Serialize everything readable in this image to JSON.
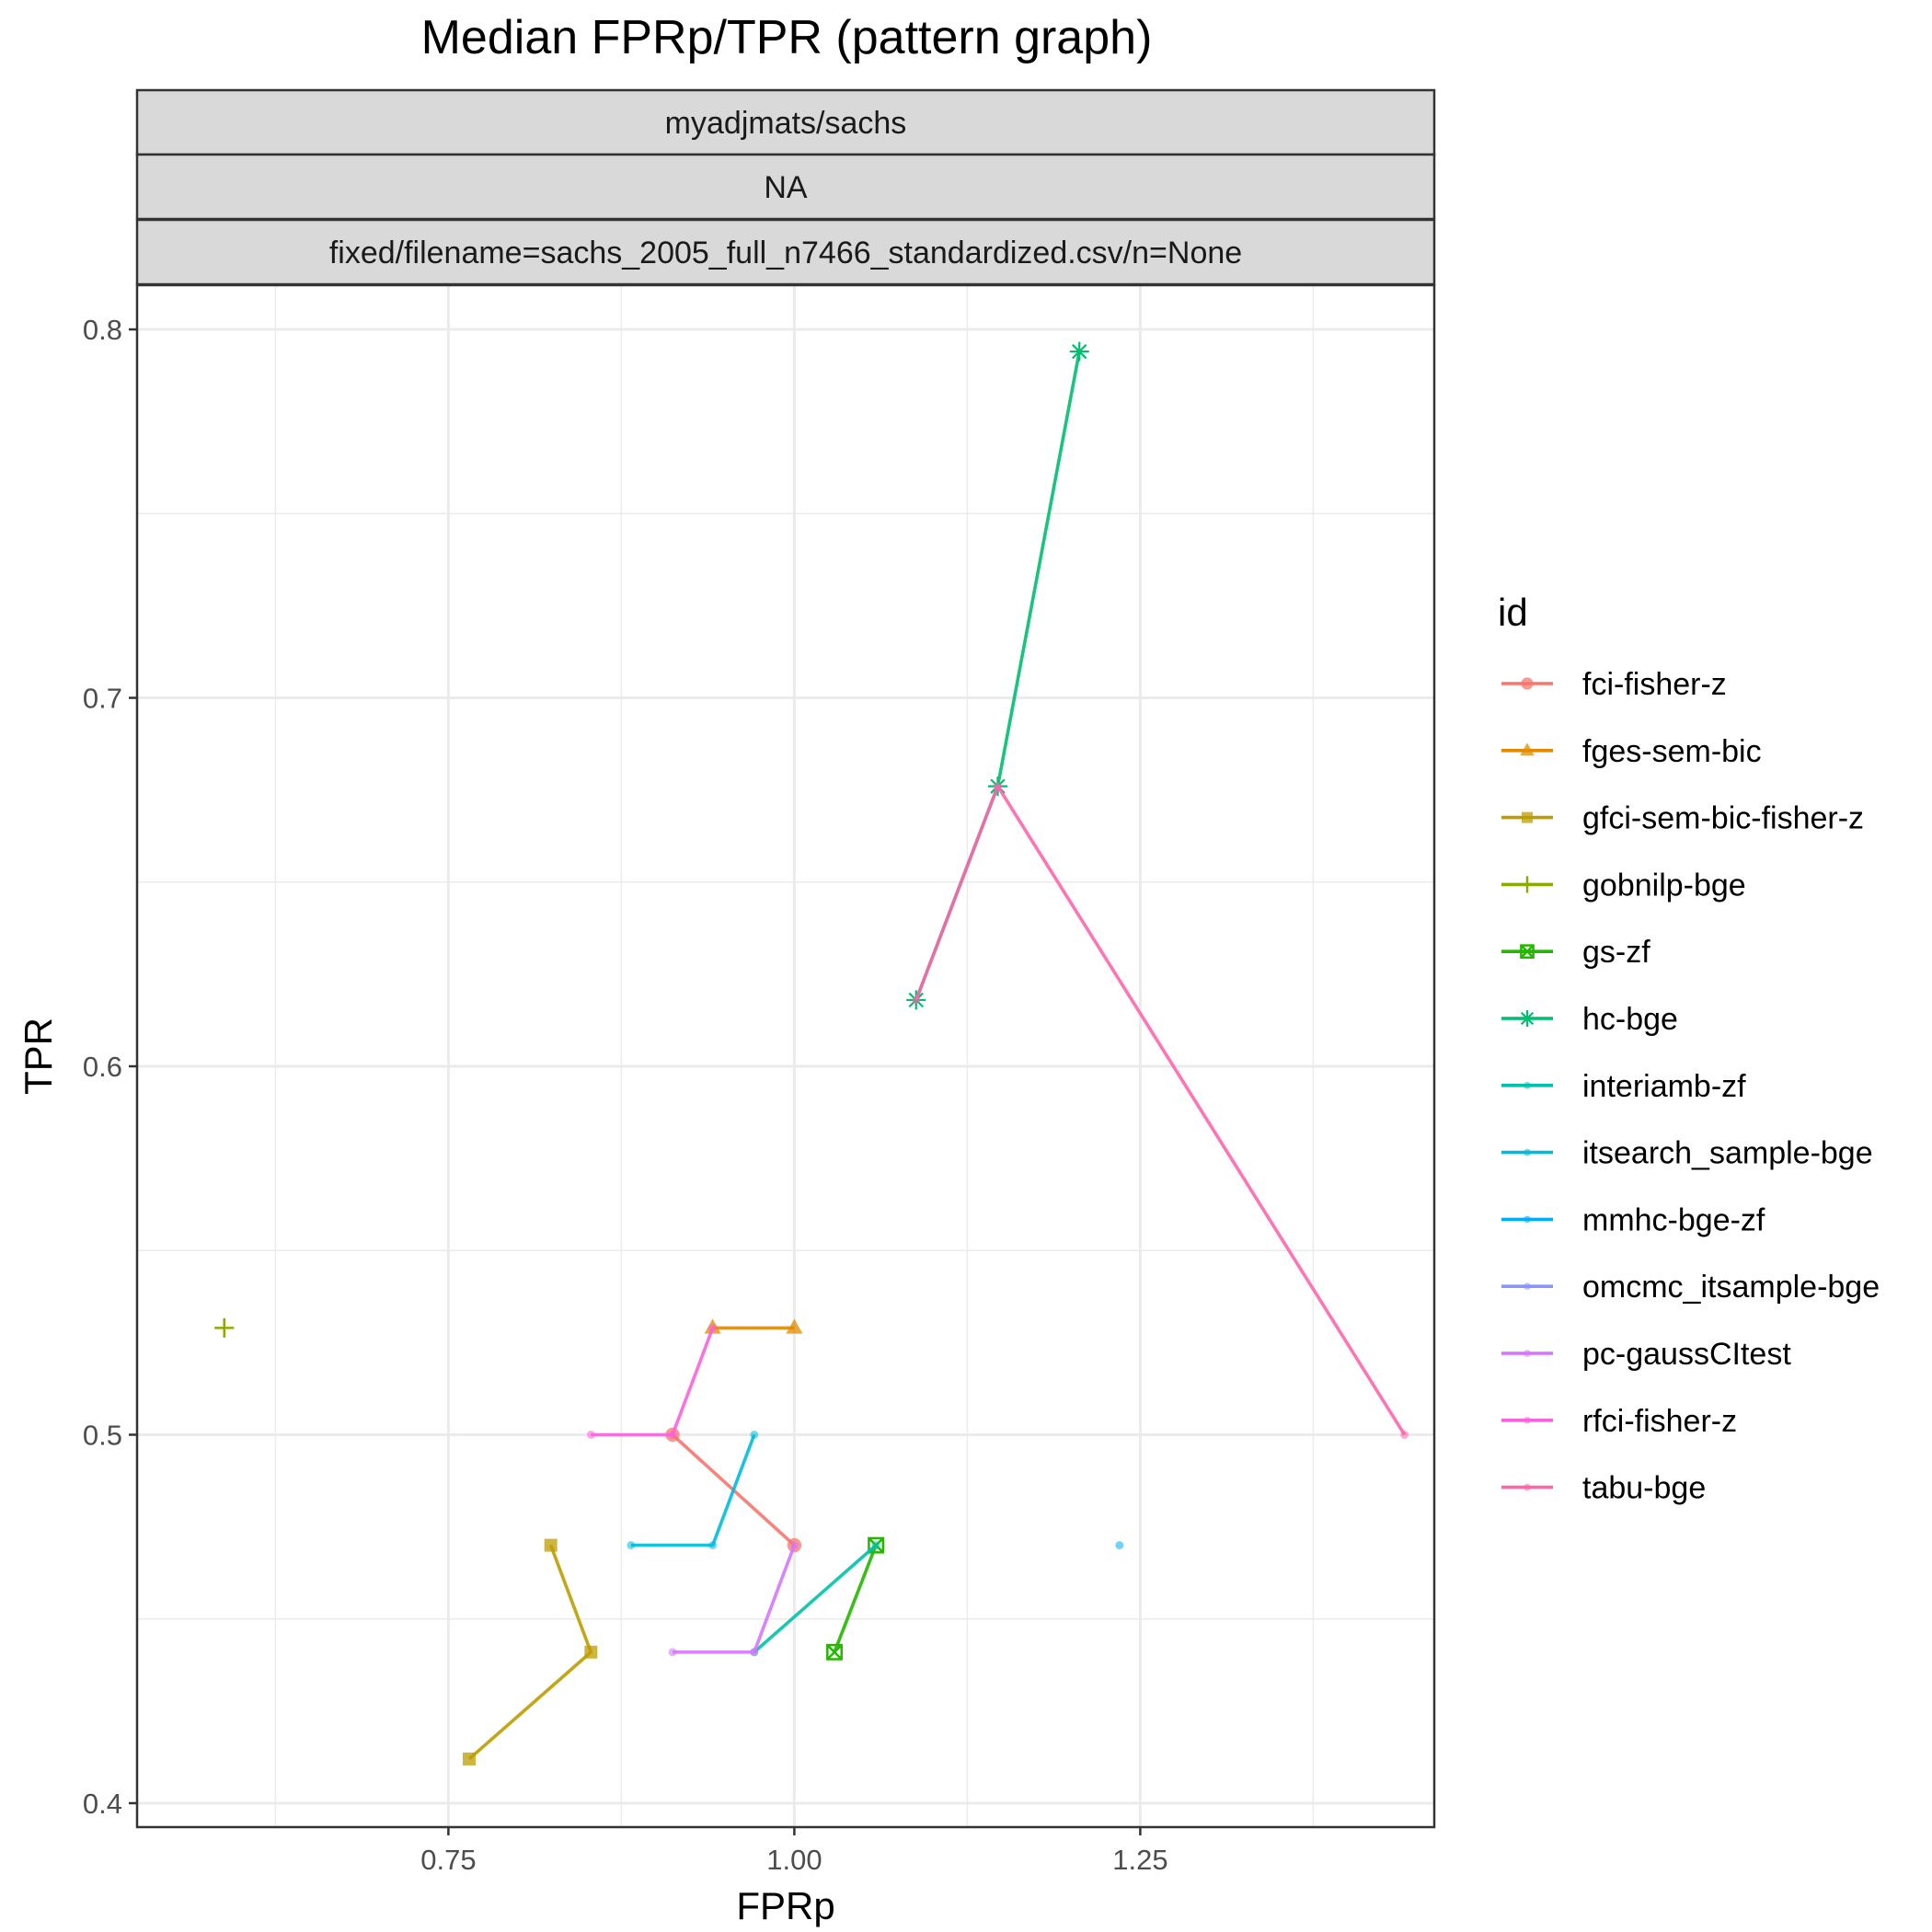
{
  "chart_data": {
    "type": "line",
    "title": "Median FPRp/TPR (pattern graph)",
    "strips": [
      "myadjmats/sachs",
      "NA",
      "fixed/filename=sachs_2005_full_n7466_standardized.csv/n=None"
    ],
    "xlabel": "FPRp",
    "ylabel": "TPR",
    "xlim": [
      0.525,
      1.4625
    ],
    "ylim": [
      0.3935,
      0.812
    ],
    "x_ticks": [
      {
        "value": 0.75,
        "label": "0.75"
      },
      {
        "value": 1.0,
        "label": "1.00"
      },
      {
        "value": 1.25,
        "label": "1.25"
      }
    ],
    "x_minor": [
      0.625,
      0.875,
      1.125,
      1.375
    ],
    "y_ticks": [
      {
        "value": 0.4,
        "label": "0.4"
      },
      {
        "value": 0.5,
        "label": "0.5"
      },
      {
        "value": 0.6,
        "label": "0.6"
      },
      {
        "value": 0.7,
        "label": "0.7"
      },
      {
        "value": 0.8,
        "label": "0.8"
      }
    ],
    "y_minor": [
      0.45,
      0.55,
      0.65,
      0.75
    ],
    "grid": true,
    "legend_title": "id",
    "legend_position": "right",
    "series": [
      {
        "name": "fci-fisher-z",
        "color": "#F8766D",
        "shape": "circle",
        "points": [
          [
            0.912,
            0.5
          ],
          [
            1.0,
            0.47
          ]
        ]
      },
      {
        "name": "fges-sem-bic",
        "color": "#E18A00",
        "shape": "triangle",
        "points": [
          [
            0.941,
            0.529
          ],
          [
            1.0,
            0.529
          ]
        ]
      },
      {
        "name": "gfci-sem-bic-fisher-z",
        "color": "#BE9C00",
        "shape": "square",
        "points": [
          [
            0.765,
            0.412
          ],
          [
            0.853,
            0.441
          ],
          [
            0.824,
            0.47
          ]
        ]
      },
      {
        "name": "gobnilp-bge",
        "color": "#8CAB00",
        "shape": "plus",
        "points": [
          [
            0.588,
            0.529
          ]
        ]
      },
      {
        "name": "gs-zf",
        "color": "#24B700",
        "shape": "square-cross",
        "points": [
          [
            1.029,
            0.441
          ],
          [
            1.059,
            0.47
          ]
        ]
      },
      {
        "name": "hc-bge",
        "color": "#00BE70",
        "shape": "star",
        "points": [
          [
            1.088,
            0.618
          ],
          [
            1.147,
            0.676
          ],
          [
            1.206,
            0.794
          ]
        ]
      },
      {
        "name": "interiamb-zf",
        "color": "#00C1AB",
        "shape": "dot",
        "points": [
          [
            0.971,
            0.441
          ],
          [
            1.059,
            0.47
          ]
        ]
      },
      {
        "name": "itsearch_sample-bge",
        "color": "#00BBDA",
        "shape": "dot",
        "points": [
          [
            0.882,
            0.47
          ],
          [
            0.941,
            0.47
          ],
          [
            0.971,
            0.5
          ]
        ]
      },
      {
        "name": "mmhc-bge-zf",
        "color": "#00ACFC",
        "shape": "dot",
        "points": [
          [
            1.235,
            0.47
          ]
        ]
      },
      {
        "name": "omcmc_itsample-bge",
        "color": "#8B93FF",
        "shape": "dot",
        "points": []
      },
      {
        "name": "pc-gaussCItest",
        "color": "#D575FE",
        "shape": "dot",
        "points": [
          [
            0.912,
            0.441
          ],
          [
            0.971,
            0.441
          ],
          [
            1.0,
            0.47
          ]
        ]
      },
      {
        "name": "rfci-fisher-z",
        "color": "#F962DD",
        "shape": "dot",
        "points": [
          [
            0.853,
            0.5
          ],
          [
            0.912,
            0.5
          ],
          [
            0.941,
            0.529
          ]
        ]
      },
      {
        "name": "tabu-bge",
        "color": "#FF65AC",
        "shape": "dot",
        "points": [
          [
            1.088,
            0.618
          ],
          [
            1.147,
            0.676
          ],
          [
            1.441,
            0.5
          ]
        ]
      }
    ]
  }
}
